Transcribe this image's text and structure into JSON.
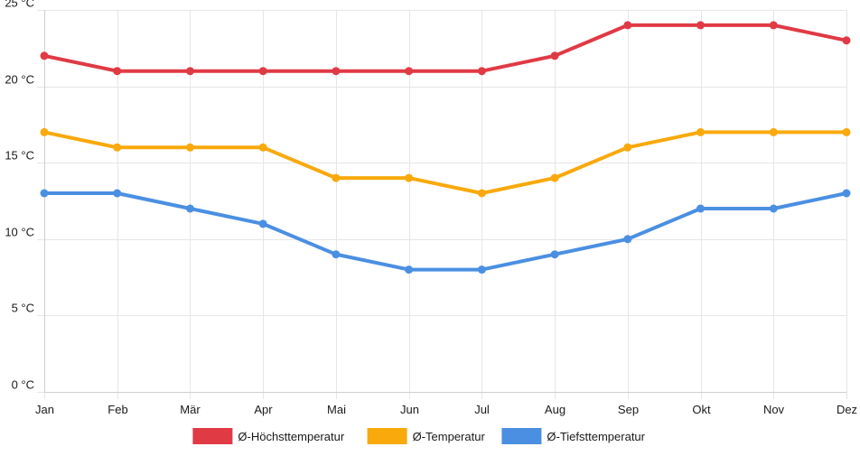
{
  "chart_data": {
    "type": "line",
    "title": "",
    "xlabel": "",
    "ylabel": "",
    "categories": [
      "Jan",
      "Feb",
      "Mär",
      "Apr",
      "Mai",
      "Jun",
      "Jul",
      "Aug",
      "Sep",
      "Okt",
      "Nov",
      "Dez"
    ],
    "ylim": [
      0,
      25
    ],
    "y_ticks": [
      0,
      5,
      10,
      15,
      20,
      25
    ],
    "y_tick_labels": [
      "0 °C",
      "5 °C",
      "10 °C",
      "15 °C",
      "20 °C",
      "25 °C"
    ],
    "grid": true,
    "legend_position": "bottom",
    "series": [
      {
        "name": "Ø-Höchsttemperatur",
        "color": "#e03a45",
        "values": [
          22,
          21,
          21,
          21,
          21,
          21,
          21,
          22,
          24,
          24,
          24,
          23
        ]
      },
      {
        "name": "Ø-Temperatur",
        "color": "#f9a90c",
        "values": [
          17,
          16,
          16,
          16,
          14,
          14,
          13,
          14,
          16,
          17,
          17,
          17
        ]
      },
      {
        "name": "Ø-Tiefsttemperatur",
        "color": "#4a8fe2",
        "values": [
          13,
          13,
          12,
          11,
          9,
          8,
          8,
          9,
          10,
          12,
          12,
          13
        ]
      }
    ]
  }
}
